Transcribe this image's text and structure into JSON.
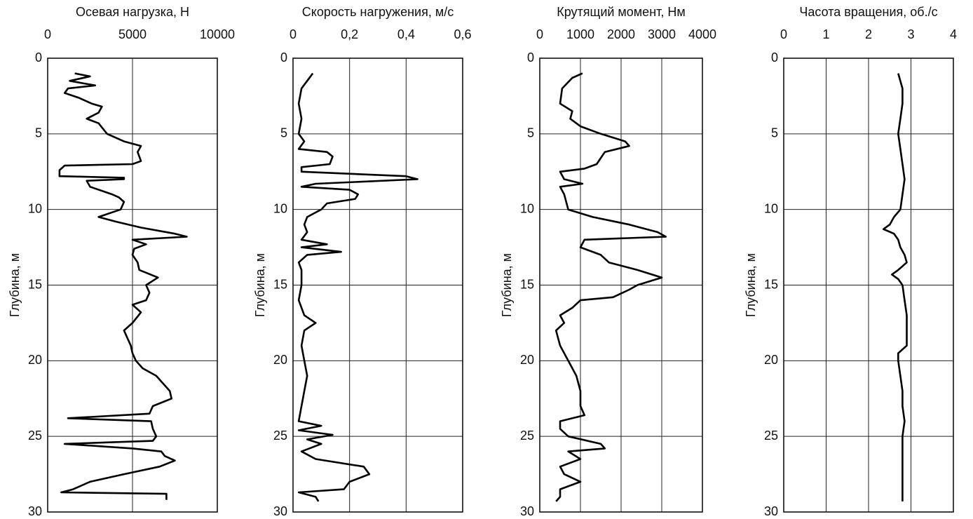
{
  "chart_data": [
    {
      "type": "line",
      "title": "Осевая нагрузка, Н",
      "ylabel": "Глубина, м",
      "xlim": [
        0,
        10000
      ],
      "xticks": [
        0,
        5000,
        10000
      ],
      "ylim": [
        0,
        30
      ],
      "yticks": [
        0,
        5,
        10,
        15,
        20,
        25,
        30
      ],
      "invert_y": true,
      "grid": true,
      "color": "#000000",
      "x": [
        1600,
        2500,
        1300,
        2800,
        1200,
        1000,
        1800,
        2600,
        3200,
        3000,
        2300,
        3000,
        3500,
        4500,
        5500,
        5300,
        5500,
        5000,
        1000,
        700,
        700,
        4500,
        4500,
        2300,
        2500,
        3800,
        4200,
        4500,
        4300,
        3000,
        4000,
        5500,
        7500,
        8200,
        5000,
        5800,
        5100,
        5000,
        5300,
        5400,
        6500,
        5800,
        6000,
        5800,
        5000,
        5500,
        5000,
        4500,
        4700,
        4900,
        5000,
        5200,
        5600,
        6400,
        6800,
        7200,
        7300,
        6200,
        6000,
        1200,
        6100,
        6200,
        6400,
        6200,
        1000,
        5000,
        6700,
        6900,
        7500,
        6600,
        4500,
        2500,
        1500,
        800,
        7000,
        7000
      ],
      "y": [
        1.0,
        1.2,
        1.5,
        1.8,
        2.0,
        2.3,
        2.6,
        3.0,
        3.2,
        3.6,
        4.0,
        4.3,
        5.0,
        5.5,
        5.8,
        6.2,
        6.8,
        7.0,
        7.1,
        7.4,
        7.8,
        7.9,
        8.0,
        8.1,
        8.5,
        9.0,
        9.2,
        9.5,
        10.0,
        10.5,
        10.8,
        11.2,
        11.6,
        11.8,
        12.0,
        12.3,
        12.6,
        13.0,
        13.5,
        14.0,
        14.5,
        15.0,
        15.5,
        16.0,
        16.3,
        16.8,
        17.5,
        18.0,
        18.5,
        19.0,
        19.5,
        20.0,
        20.5,
        21.0,
        21.5,
        22.0,
        22.5,
        23.0,
        23.5,
        23.8,
        24.0,
        24.5,
        25.0,
        25.3,
        25.5,
        25.8,
        26.0,
        26.3,
        26.6,
        27.0,
        27.5,
        28.0,
        28.5,
        28.7,
        28.8,
        29.2
      ]
    },
    {
      "type": "line",
      "title": "Скорость нагружения, м/с",
      "ylabel": "Глубина, м",
      "xlim": [
        0,
        0.6
      ],
      "xticks": [
        0,
        {
          "value": 0.2,
          "label": "0,2"
        },
        {
          "value": 0.4,
          "label": "0,4"
        },
        {
          "value": 0.6,
          "label": "0,6"
        }
      ],
      "ylim": [
        0,
        30
      ],
      "yticks": [
        0,
        5,
        10,
        15,
        20,
        25,
        30
      ],
      "invert_y": true,
      "grid": true,
      "color": "#000000",
      "x": [
        0.07,
        0.05,
        0.03,
        0.02,
        0.03,
        0.02,
        0.04,
        0.02,
        0.12,
        0.14,
        0.13,
        0.03,
        0.03,
        0.4,
        0.44,
        0.08,
        0.03,
        0.2,
        0.23,
        0.22,
        0.12,
        0.1,
        0.05,
        0.04,
        0.05,
        0.03,
        0.12,
        0.03,
        0.17,
        0.05,
        0.02,
        0.03,
        0.03,
        0.02,
        0.04,
        0.08,
        0.04,
        0.03,
        0.04,
        0.05,
        0.04,
        0.03,
        0.02,
        0.1,
        0.02,
        0.14,
        0.05,
        0.1,
        0.03,
        0.08,
        0.25,
        0.27,
        0.2,
        0.18,
        0.02,
        0.08,
        0.09
      ],
      "y": [
        1.0,
        1.5,
        2.0,
        3.0,
        4.0,
        5.0,
        5.5,
        6.0,
        6.2,
        6.5,
        7.0,
        7.2,
        7.5,
        7.8,
        8.0,
        8.3,
        8.5,
        8.7,
        9.0,
        9.3,
        9.6,
        10.0,
        10.5,
        11.0,
        11.5,
        12.0,
        12.3,
        12.5,
        12.8,
        13.0,
        13.5,
        14.0,
        15.0,
        16.0,
        17.0,
        17.5,
        18.0,
        19.0,
        20.0,
        21.0,
        22.0,
        23.0,
        24.0,
        24.3,
        24.6,
        24.9,
        25.2,
        25.5,
        26.0,
        26.5,
        27.0,
        27.5,
        28.0,
        28.5,
        28.7,
        29.0,
        29.3
      ]
    },
    {
      "type": "line",
      "title": "Крутящий момент, Нм",
      "ylabel": "Глубина, м",
      "xlim": [
        0,
        4000
      ],
      "xticks": [
        0,
        1000,
        2000,
        3000,
        4000
      ],
      "ylim": [
        0,
        30
      ],
      "yticks": [
        0,
        5,
        10,
        15,
        20,
        25,
        30
      ],
      "invert_y": true,
      "grid": true,
      "color": "#000000",
      "x": [
        1050,
        800,
        550,
        500,
        800,
        750,
        1000,
        1500,
        2100,
        2200,
        1600,
        1400,
        1100,
        500,
        600,
        1050,
        500,
        600,
        700,
        1300,
        2200,
        2900,
        3100,
        1100,
        1000,
        1500,
        1700,
        2400,
        3000,
        2400,
        2200,
        1800,
        1000,
        800,
        500,
        600,
        400,
        500,
        700,
        900,
        1000,
        1000,
        1100,
        500,
        500,
        700,
        1500,
        1600,
        700,
        1000,
        500,
        600,
        1000,
        500,
        500,
        400
      ],
      "y": [
        1.0,
        1.3,
        2.0,
        3.0,
        3.5,
        4.0,
        4.5,
        5.0,
        5.5,
        5.8,
        6.2,
        7.0,
        7.3,
        7.5,
        8.0,
        8.3,
        8.5,
        9.0,
        10.0,
        10.5,
        11.0,
        11.5,
        11.8,
        12.0,
        12.5,
        13.0,
        13.5,
        14.0,
        14.5,
        15.0,
        15.3,
        15.8,
        16.0,
        16.5,
        17.0,
        17.5,
        18.0,
        19.0,
        20.0,
        21.0,
        22.0,
        23.0,
        23.6,
        24.0,
        24.5,
        25.0,
        25.5,
        25.8,
        26.0,
        26.5,
        27.0,
        27.5,
        28.0,
        28.5,
        29.0,
        29.3
      ]
    },
    {
      "type": "line",
      "title": "Часота вращения, об./с",
      "ylabel": "Глубина, м",
      "xlim": [
        0,
        4
      ],
      "xticks": [
        0,
        1,
        2,
        3,
        4
      ],
      "ylim": [
        0,
        30
      ],
      "yticks": [
        0,
        5,
        10,
        15,
        20,
        25,
        30
      ],
      "invert_y": true,
      "grid": true,
      "color": "#000000",
      "x": [
        2.7,
        2.8,
        2.8,
        2.75,
        2.7,
        2.75,
        2.8,
        2.85,
        2.8,
        2.75,
        2.6,
        2.5,
        2.35,
        2.6,
        2.7,
        2.75,
        2.85,
        2.9,
        2.7,
        2.55,
        2.7,
        2.8,
        2.85,
        2.9,
        2.9,
        2.9,
        2.7,
        2.7,
        2.75,
        2.8,
        2.8,
        2.85,
        2.8,
        2.8,
        2.8,
        2.8,
        2.8,
        2.8
      ],
      "y": [
        1.0,
        2.0,
        3.0,
        4.0,
        5.0,
        6.0,
        7.0,
        8.0,
        9.0,
        10.0,
        10.5,
        11.0,
        11.3,
        11.6,
        12.0,
        12.5,
        13.0,
        13.5,
        14.0,
        14.3,
        14.6,
        15.0,
        16.0,
        17.0,
        18.0,
        19.0,
        19.5,
        20.0,
        21.0,
        22.0,
        23.0,
        24.0,
        25.0,
        26.0,
        27.0,
        28.0,
        29.0,
        29.3
      ]
    }
  ]
}
